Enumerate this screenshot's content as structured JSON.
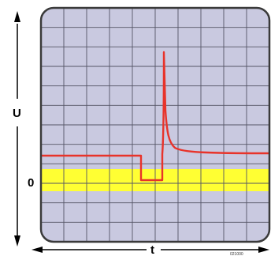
{
  "diagram": {
    "vertical_axis_label": "U",
    "horizontal_axis_label": "t",
    "zero_label": "0",
    "credit": "021000",
    "colors": {
      "screen_background": "#c9c9e0",
      "screen_border": "#3a3a3a",
      "grid_line": "#555566",
      "zero_band": "#ffff33",
      "trace": "#e8332a",
      "axis_arrow": "#000000"
    },
    "grid": {
      "columns": 10,
      "rows": 12
    }
  }
}
